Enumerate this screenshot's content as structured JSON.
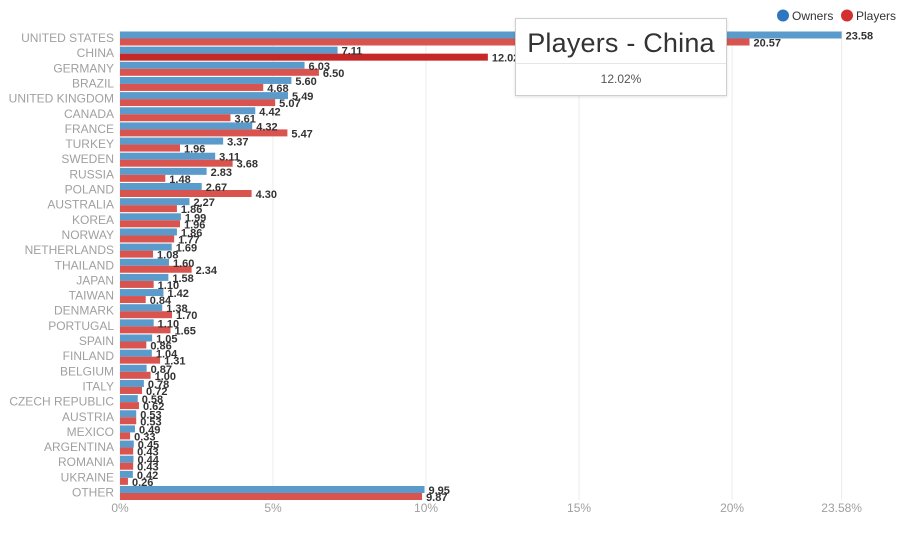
{
  "colors": {
    "owners": "#5b9bcb",
    "players": "#d9534f",
    "players_highlight": "#c62828"
  },
  "legend": [
    {
      "name": "Owners",
      "color": "#2e77c0"
    },
    {
      "name": "Players",
      "color": "#d32f2f"
    }
  ],
  "tooltip": {
    "title": "Players - China",
    "value": "12.02%"
  },
  "chart_data": {
    "type": "bar",
    "orientation": "horizontal",
    "categories": [
      "UNITED STATES",
      "CHINA",
      "GERMANY",
      "BRAZIL",
      "UNITED KINGDOM",
      "CANADA",
      "FRANCE",
      "TURKEY",
      "SWEDEN",
      "RUSSIA",
      "POLAND",
      "AUSTRALIA",
      "KOREA",
      "NORWAY",
      "NETHERLANDS",
      "THAILAND",
      "JAPAN",
      "TAIWAN",
      "DENMARK",
      "PORTUGAL",
      "SPAIN",
      "FINLAND",
      "BELGIUM",
      "ITALY",
      "CZECH REPUBLIC",
      "AUSTRIA",
      "MEXICO",
      "ARGENTINA",
      "ROMANIA",
      "UKRAINE",
      "OTHER"
    ],
    "series": [
      {
        "name": "Owners",
        "values": [
          23.58,
          7.11,
          6.03,
          5.6,
          5.49,
          4.42,
          4.32,
          3.37,
          3.11,
          2.83,
          2.67,
          2.27,
          1.99,
          1.86,
          1.69,
          1.6,
          1.58,
          1.42,
          1.38,
          1.1,
          1.05,
          1.04,
          0.87,
          0.78,
          0.58,
          0.53,
          0.49,
          0.45,
          0.44,
          0.42,
          9.95
        ],
        "labels": [
          "23.58",
          "7.11",
          "6.03",
          "5.60",
          "5.49",
          "4.42",
          "4.32",
          "3.37",
          "3.11",
          "2.83",
          "2.67",
          "2.27",
          "1.99",
          "1.86",
          "1.69",
          "1.60",
          "1.58",
          "1.42",
          "1.38",
          "1.10",
          "1.05",
          "1.04",
          "0.87",
          "0.78",
          "0.58",
          "0.53",
          "0.49",
          "0.45",
          "0.44",
          "0.42",
          "9.95"
        ]
      },
      {
        "name": "Players",
        "values": [
          20.57,
          12.02,
          6.5,
          4.68,
          5.07,
          3.61,
          5.47,
          1.96,
          3.68,
          1.48,
          4.3,
          1.86,
          1.96,
          1.77,
          1.08,
          2.34,
          1.1,
          0.84,
          1.7,
          1.65,
          0.86,
          1.31,
          1.0,
          0.72,
          0.62,
          0.53,
          0.33,
          0.43,
          0.43,
          0.26,
          9.87
        ],
        "labels": [
          "20.57",
          "12.02",
          "6.50",
          "4.68",
          "5.07",
          "3.61",
          "5.47",
          "1.96",
          "3.68",
          "1.48",
          "4.30",
          "1.86",
          "1.96",
          "1.77",
          "1.08",
          "2.34",
          "1.10",
          "0.84",
          "1.70",
          "1.65",
          "0.86",
          "1.31",
          "1.00",
          "0.72",
          "0.62",
          "0.53",
          "0.33",
          "0.43",
          "0.43",
          "0.26",
          "9.87"
        ]
      }
    ],
    "highlight": {
      "series": "Players",
      "category": "CHINA"
    },
    "xlim": [
      0,
      25.16
    ],
    "x_ticks": [
      {
        "value": 0,
        "label": "0%"
      },
      {
        "value": 5,
        "label": "5%"
      },
      {
        "value": 10,
        "label": "10%"
      },
      {
        "value": 15,
        "label": "15%"
      },
      {
        "value": 20,
        "label": "20%"
      },
      {
        "value": 23.58,
        "label": "23.58%"
      }
    ],
    "grid": true,
    "legend_position": "top-right"
  }
}
